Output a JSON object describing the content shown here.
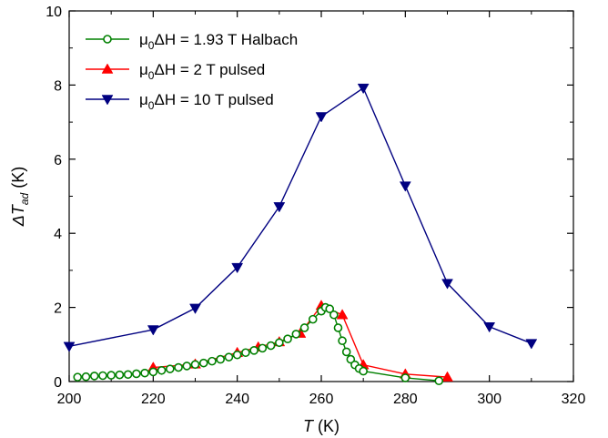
{
  "chart_data": {
    "type": "line",
    "xlabel": {
      "symbol": "T",
      "unit": " (K)"
    },
    "ylabel": {
      "prefix": "Δ",
      "symbol": "T",
      "sub": "ad",
      "unit": " (K)"
    },
    "xlim": [
      200,
      320
    ],
    "ylim": [
      0,
      10
    ],
    "xticks": [
      200,
      220,
      240,
      260,
      280,
      300,
      320
    ],
    "yticks": [
      0,
      2,
      4,
      6,
      8,
      10
    ],
    "grid": false,
    "legend_position": "top-left",
    "series": [
      {
        "name": {
          "pre": "μ",
          "sub": "0",
          "post": "ΔH = 1.93 T Halbach"
        },
        "color": "#008000",
        "marker": "circle-open",
        "x": [
          202,
          204,
          206,
          208,
          210,
          212,
          214,
          216,
          218,
          220,
          222,
          224,
          226,
          228,
          230,
          232,
          234,
          236,
          238,
          240,
          242,
          244,
          246,
          248,
          250,
          252,
          254,
          256,
          258,
          260,
          261,
          262,
          263,
          264,
          265,
          266,
          267,
          268,
          269,
          270,
          280,
          288
        ],
        "y": [
          0.12,
          0.13,
          0.15,
          0.16,
          0.17,
          0.18,
          0.19,
          0.21,
          0.23,
          0.26,
          0.3,
          0.34,
          0.38,
          0.42,
          0.46,
          0.5,
          0.55,
          0.6,
          0.66,
          0.72,
          0.78,
          0.84,
          0.9,
          0.97,
          1.05,
          1.15,
          1.28,
          1.45,
          1.68,
          1.9,
          2.0,
          1.96,
          1.8,
          1.45,
          1.1,
          0.8,
          0.6,
          0.45,
          0.35,
          0.28,
          0.1,
          0.02
        ]
      },
      {
        "name": {
          "pre": "μ",
          "sub": "0",
          "post": "ΔH = 2 T pulsed"
        },
        "color": "#ff0000",
        "marker": "triangle-up",
        "x": [
          220,
          230,
          240,
          245,
          250,
          255,
          260,
          265,
          270,
          280,
          290
        ],
        "y": [
          0.38,
          0.47,
          0.78,
          0.93,
          1.07,
          1.3,
          2.05,
          1.8,
          0.45,
          0.2,
          0.12
        ]
      },
      {
        "name": {
          "pre": "μ",
          "sub": "0",
          "post": "ΔH = 10 T pulsed"
        },
        "color": "#000080",
        "marker": "triangle-down",
        "x": [
          200,
          220,
          230,
          240,
          250,
          260,
          270,
          280,
          290,
          300,
          310
        ],
        "y": [
          0.95,
          1.4,
          1.98,
          3.08,
          4.72,
          7.15,
          7.92,
          5.28,
          2.65,
          1.48,
          1.03
        ]
      }
    ]
  }
}
